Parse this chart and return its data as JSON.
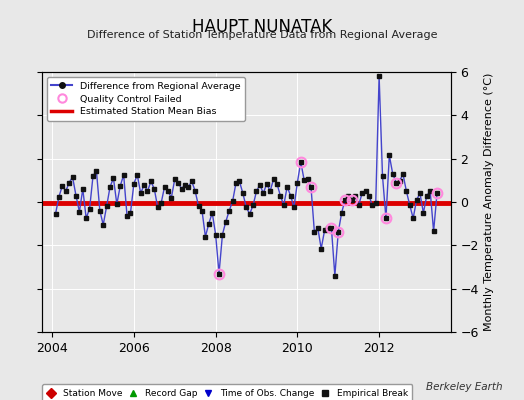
{
  "title": "HAUPT NUNATAK",
  "subtitle": "Difference of Station Temperature Data from Regional Average",
  "ylabel_right": "Monthly Temperature Anomaly Difference (°C)",
  "ylim": [
    -6,
    6
  ],
  "xlim": [
    2003.75,
    2013.75
  ],
  "xticks": [
    2004,
    2006,
    2008,
    2010,
    2012
  ],
  "yticks": [
    -6,
    -4,
    -2,
    0,
    2,
    4,
    6
  ],
  "bias_value": -0.05,
  "fig_bg": "#e8e8e8",
  "plot_bg": "#e8e8e8",
  "line_color": "#4444cc",
  "marker_color": "#111111",
  "bias_color": "#dd0000",
  "qc_color": "#ff88dd",
  "watermark": "Berkeley Earth",
  "time_values": [
    2004.083,
    2004.167,
    2004.25,
    2004.333,
    2004.417,
    2004.5,
    2004.583,
    2004.667,
    2004.75,
    2004.833,
    2004.917,
    2005.0,
    2005.083,
    2005.167,
    2005.25,
    2005.333,
    2005.417,
    2005.5,
    2005.583,
    2005.667,
    2005.75,
    2005.833,
    2005.917,
    2006.0,
    2006.083,
    2006.167,
    2006.25,
    2006.333,
    2006.417,
    2006.5,
    2006.583,
    2006.667,
    2006.75,
    2006.833,
    2006.917,
    2007.0,
    2007.083,
    2007.167,
    2007.25,
    2007.333,
    2007.417,
    2007.5,
    2007.583,
    2007.667,
    2007.75,
    2007.833,
    2007.917,
    2008.0,
    2008.083,
    2008.167,
    2008.25,
    2008.333,
    2008.417,
    2008.5,
    2008.583,
    2008.667,
    2008.75,
    2008.833,
    2008.917,
    2009.0,
    2009.083,
    2009.167,
    2009.25,
    2009.333,
    2009.417,
    2009.5,
    2009.583,
    2009.667,
    2009.75,
    2009.833,
    2009.917,
    2010.0,
    2010.083,
    2010.167,
    2010.25,
    2010.333,
    2010.417,
    2010.5,
    2010.583,
    2010.667,
    2010.75,
    2010.833,
    2010.917,
    2011.0,
    2011.083,
    2011.167,
    2011.25,
    2011.333,
    2011.417,
    2011.5,
    2011.583,
    2011.667,
    2011.75,
    2011.833,
    2011.917,
    2012.0,
    2012.083,
    2012.167,
    2012.25,
    2012.333,
    2012.417,
    2012.5,
    2012.583,
    2012.667,
    2012.75,
    2012.833,
    2012.917,
    2013.0,
    2013.083,
    2013.167,
    2013.25,
    2013.333,
    2013.417
  ],
  "diff_values": [
    -0.55,
    0.25,
    0.75,
    0.5,
    0.9,
    1.15,
    0.3,
    -0.45,
    0.6,
    -0.75,
    -0.3,
    1.2,
    1.45,
    -0.4,
    -1.05,
    -0.2,
    0.7,
    1.1,
    -0.1,
    0.75,
    1.25,
    -0.65,
    -0.5,
    0.85,
    1.25,
    0.4,
    0.8,
    0.5,
    0.95,
    0.6,
    -0.25,
    -0.05,
    0.7,
    0.5,
    0.2,
    1.05,
    0.9,
    0.6,
    0.8,
    0.7,
    0.95,
    0.5,
    -0.2,
    -0.4,
    -1.6,
    -1.0,
    -0.5,
    -1.5,
    -3.3,
    -1.5,
    -0.9,
    -0.4,
    0.05,
    0.9,
    0.95,
    0.4,
    -0.25,
    -0.55,
    -0.15,
    0.5,
    0.8,
    0.4,
    0.85,
    0.5,
    1.05,
    0.85,
    0.3,
    -0.15,
    0.7,
    0.3,
    -0.25,
    0.9,
    1.85,
    1.0,
    1.05,
    0.7,
    -1.4,
    -1.2,
    -2.15,
    -1.3,
    -1.2,
    -1.2,
    -3.4,
    -1.4,
    -0.5,
    0.1,
    0.3,
    0.1,
    0.3,
    -0.15,
    0.4,
    0.5,
    0.3,
    -0.15,
    -0.05,
    5.8,
    1.2,
    -0.75,
    2.15,
    1.3,
    0.9,
    0.95,
    1.3,
    0.5,
    -0.15,
    -0.75,
    0.1,
    0.4,
    -0.5,
    0.3,
    0.5,
    -1.35,
    0.4
  ],
  "qc_failed_indices": [
    48,
    72,
    75,
    81,
    83,
    85,
    87,
    97,
    100,
    112
  ],
  "grid_color": "#ffffff",
  "grid_lw": 0.7,
  "title_fontsize": 12,
  "subtitle_fontsize": 8,
  "tick_fontsize": 9,
  "ylabel_fontsize": 8
}
